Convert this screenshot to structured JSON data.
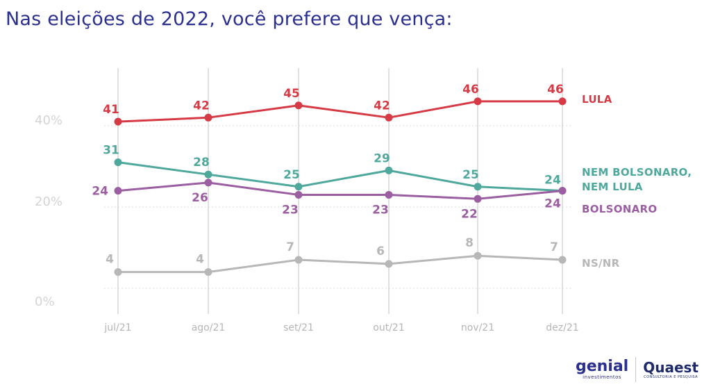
{
  "chart_data": {
    "type": "line",
    "title": "Nas eleições de 2022, você prefere que vença:",
    "categories": [
      "jul/21",
      "ago/21",
      "set/21",
      "out/21",
      "nov/21",
      "dez/21"
    ],
    "y_ticks": [
      "0%",
      "20%",
      "40%"
    ],
    "ylim": [
      0,
      55
    ],
    "grid": "dotted horizontal at 0, 20, 40; solid vertical at each category",
    "legend": "right of last point, per series",
    "series": [
      {
        "name": "LULA",
        "values": [
          41,
          42,
          45,
          42,
          46,
          46
        ],
        "color": "#d63a45"
      },
      {
        "name": "NEM BOLSONARO, NEM LULA",
        "name_lines": [
          "NEM BOLSONARO,",
          "NEM LULA"
        ],
        "values": [
          31,
          28,
          25,
          29,
          25,
          24
        ],
        "color": "#4fa89c"
      },
      {
        "name": "BOLSONARO",
        "values": [
          24,
          26,
          23,
          23,
          22,
          24
        ],
        "color": "#9b5ea1"
      },
      {
        "name": "NS/NR",
        "values": [
          4,
          4,
          7,
          6,
          8,
          7
        ],
        "color": "#b7b7b7"
      }
    ]
  },
  "logos": {
    "genial": {
      "name": "genial",
      "sub": "investimentos"
    },
    "quaest": {
      "name": "Quaest",
      "sub": "CONSULTORIA E PESQUISA"
    }
  }
}
